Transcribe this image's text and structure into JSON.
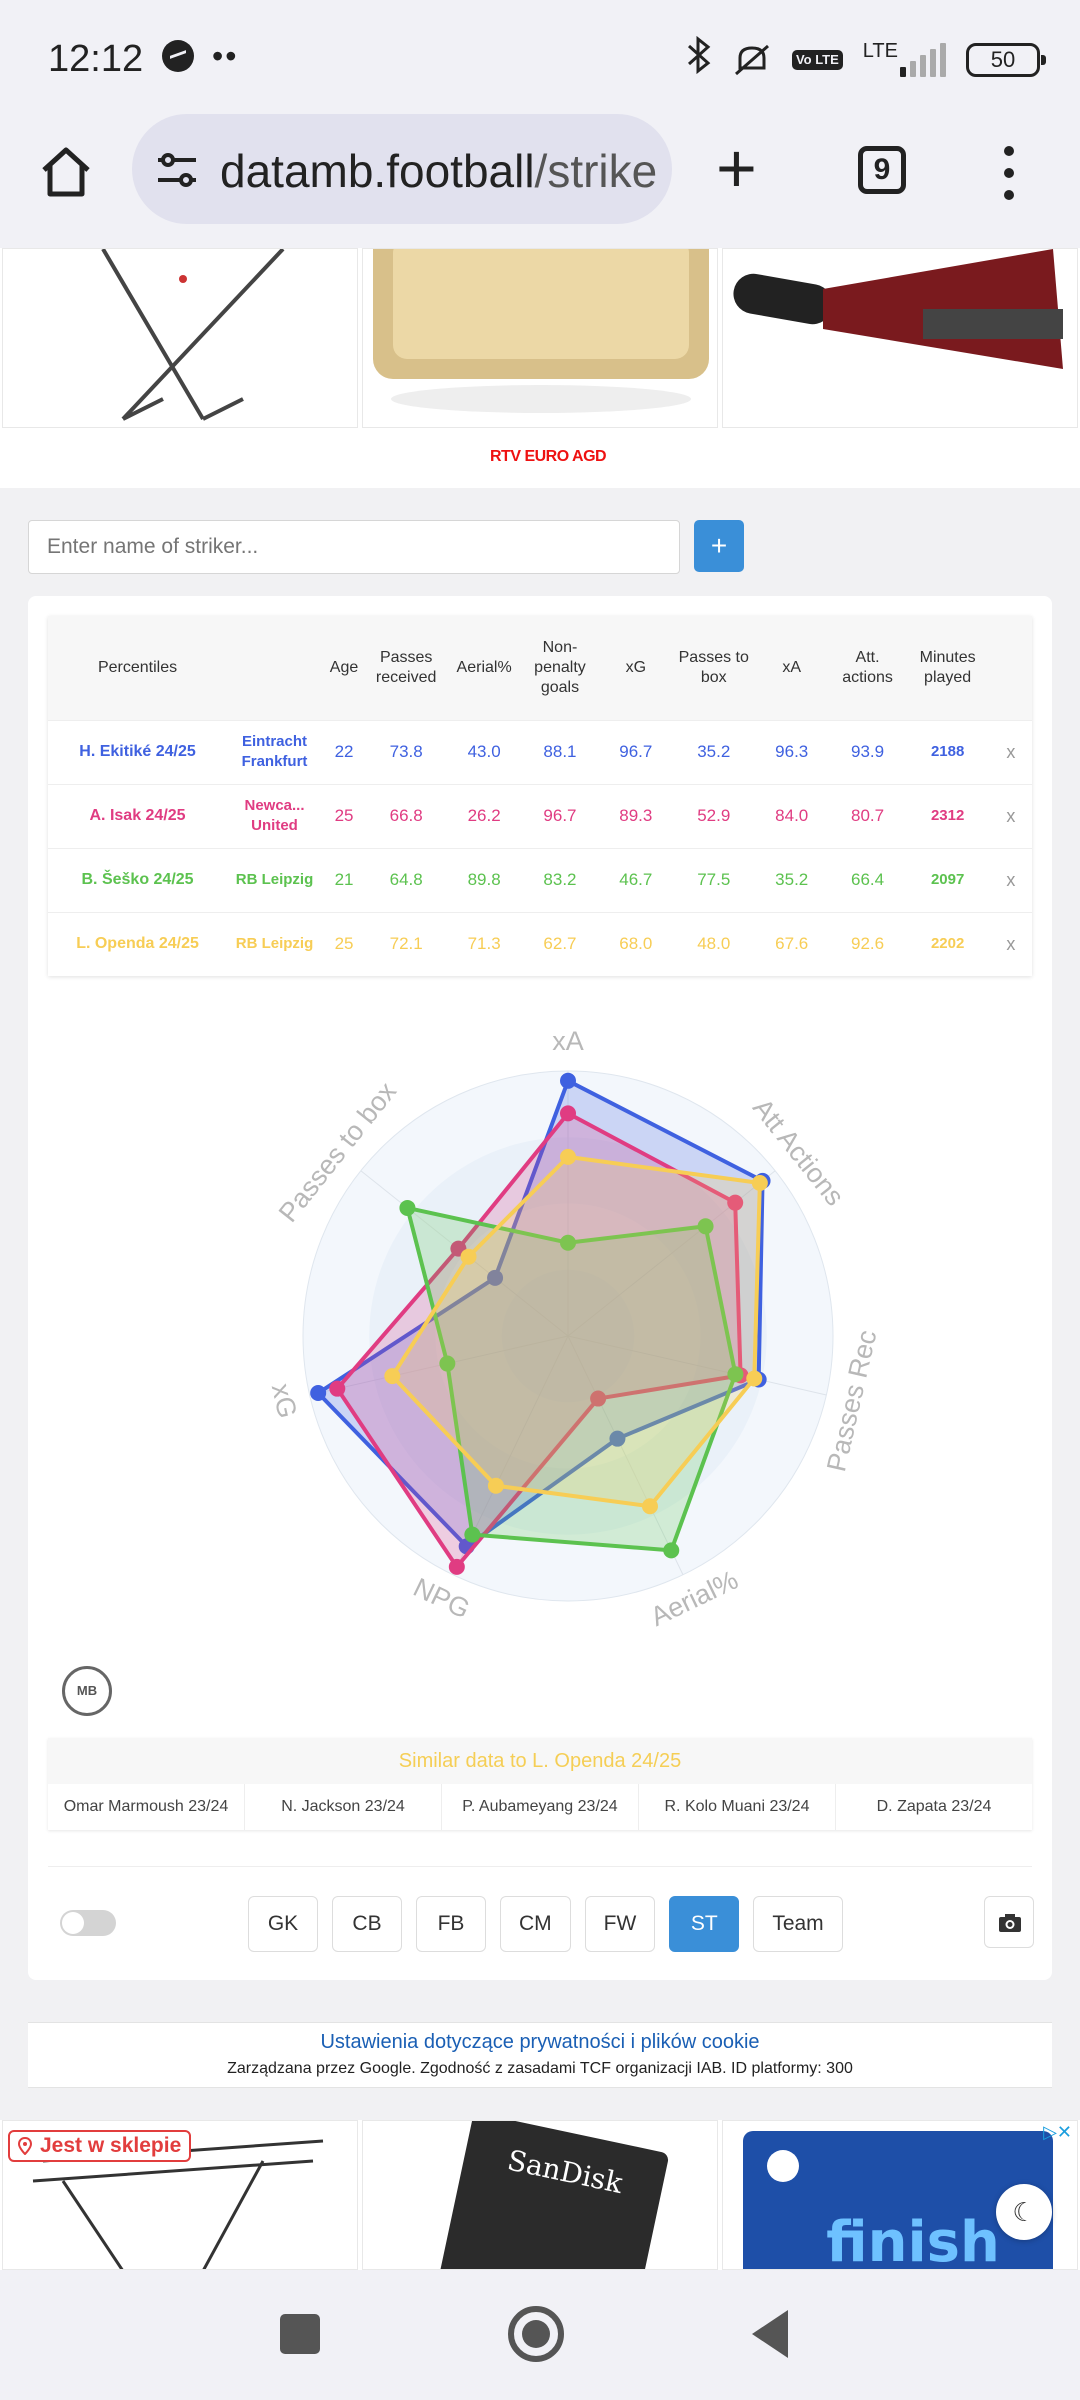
{
  "status": {
    "time": "12:12",
    "battery": "50",
    "network": "LTE",
    "volte": "Vo LTE"
  },
  "browser": {
    "url_host": "datamb.football",
    "url_path": "/strike",
    "tab_count": "9"
  },
  "search": {
    "placeholder": "Enter name of striker...",
    "add_label": "+"
  },
  "ad_top": {
    "brand": "RTV EURO AGD"
  },
  "table": {
    "headers": [
      "Percentiles",
      "Age",
      "Passes received",
      "Aerial%",
      "Non-penalty goals",
      "xG",
      "Passes to box",
      "xA",
      "Att. actions",
      "Minutes played"
    ],
    "rows": [
      {
        "player": "H. Ekitiké 24/25",
        "team": "Eintracht Frankfurt",
        "age": "22",
        "passes_received": "73.8",
        "aerial": "43.0",
        "npg": "88.1",
        "xg": "96.7",
        "passes_box": "35.2",
        "xa": "96.3",
        "att_actions": "93.9",
        "minutes": "2188",
        "remove": "x",
        "color": "#3f61e0"
      },
      {
        "player": "A. Isak 24/25",
        "team": "Newca... United",
        "age": "25",
        "passes_received": "66.8",
        "aerial": "26.2",
        "npg": "96.7",
        "xg": "89.3",
        "passes_box": "52.9",
        "xa": "84.0",
        "att_actions": "80.7",
        "minutes": "2312",
        "remove": "x",
        "color": "#e03c82"
      },
      {
        "player": "B. Šeško 24/25",
        "team": "RB Leipzig",
        "age": "21",
        "passes_received": "64.8",
        "aerial": "89.8",
        "npg": "83.2",
        "xg": "46.7",
        "passes_box": "77.5",
        "xa": "35.2",
        "att_actions": "66.4",
        "minutes": "2097",
        "remove": "x",
        "color": "#5cc24f"
      },
      {
        "player": "L. Openda 24/25",
        "team": "RB Leipzig",
        "age": "25",
        "passes_received": "72.1",
        "aerial": "71.3",
        "npg": "62.7",
        "xg": "68.0",
        "passes_box": "48.0",
        "xa": "67.6",
        "att_actions": "92.6",
        "minutes": "2202",
        "remove": "x",
        "color": "#f7cd55"
      }
    ]
  },
  "radar": {
    "axes": [
      "xA",
      "Att Actions",
      "Passes Rec",
      "Aerial%",
      "NPG",
      "xG",
      "Passes to box"
    ],
    "series": [
      {
        "name": "H. Ekitiké 24/25",
        "color": "#3f61e0",
        "fill": "rgba(63,97,224,0.22)",
        "values": [
          96.3,
          93.9,
          73.8,
          43.0,
          88.1,
          96.7,
          35.2
        ]
      },
      {
        "name": "A. Isak 24/25",
        "color": "#e03c82",
        "fill": "rgba(224,60,130,0.22)",
        "values": [
          84.0,
          80.7,
          66.8,
          26.2,
          96.7,
          89.3,
          52.9
        ]
      },
      {
        "name": "B. Šeško 24/25",
        "color": "#5cc24f",
        "fill": "rgba(92,194,79,0.22)",
        "values": [
          35.2,
          66.4,
          64.8,
          89.8,
          83.2,
          46.7,
          77.5
        ]
      },
      {
        "name": "L. Openda 24/25",
        "color": "#f7cd55",
        "fill": "rgba(247,205,85,0.22)",
        "values": [
          67.6,
          92.6,
          72.1,
          71.3,
          62.7,
          68.0,
          48.0
        ]
      }
    ]
  },
  "logo": {
    "text": "MB"
  },
  "similar": {
    "title": "Similar data to L. Openda 24/25",
    "items": [
      "Omar Marmoush 23/24",
      "N. Jackson 23/24",
      "P. Aubameyang 23/24",
      "R. Kolo Muani 23/24",
      "D. Zapata 23/24"
    ]
  },
  "positions": {
    "items": [
      "GK",
      "CB",
      "FB",
      "CM",
      "FW",
      "ST",
      "Team"
    ],
    "active": "ST"
  },
  "cookie": {
    "title": "Ustawienia dotyczące prywatności i plików cookie",
    "subtitle": "Zarządzana przez Google. Zgodność z zasadami TCF organizacji IAB. ID platformy: 300"
  },
  "ad_bottom": {
    "badge": "Jest w sklepie",
    "brand1": "SanDisk",
    "brand2": "finish"
  }
}
